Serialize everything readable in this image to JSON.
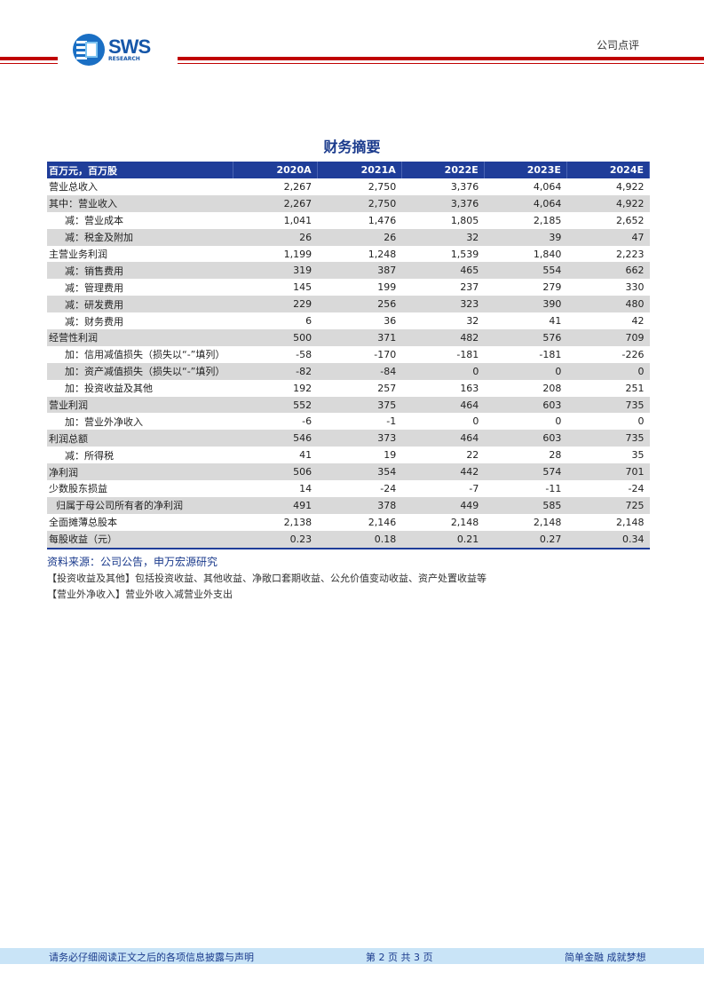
{
  "header": {
    "logo_text": "SWS",
    "logo_sub": "RESEARCH",
    "doc_type": "公司点评",
    "brand_color": "#c00000"
  },
  "title": "财务摘要",
  "table": {
    "columns": [
      "百万元，百万股",
      "2020A",
      "2021A",
      "2022E",
      "2023E",
      "2024E"
    ],
    "rows": [
      {
        "label": "营业总收入",
        "indent": 0,
        "values": [
          "2,267",
          "2,750",
          "3,376",
          "4,064",
          "4,922"
        ]
      },
      {
        "label": "其中：营业收入",
        "indent": 0,
        "values": [
          "2,267",
          "2,750",
          "3,376",
          "4,064",
          "4,922"
        ]
      },
      {
        "label": "减：营业成本",
        "indent": 1,
        "values": [
          "1,041",
          "1,476",
          "1,805",
          "2,185",
          "2,652"
        ]
      },
      {
        "label": "减：税金及附加",
        "indent": 1,
        "values": [
          "26",
          "26",
          "32",
          "39",
          "47"
        ]
      },
      {
        "label": "主营业务利润",
        "indent": 0,
        "values": [
          "1,199",
          "1,248",
          "1,539",
          "1,840",
          "2,223"
        ]
      },
      {
        "label": "减：销售费用",
        "indent": 1,
        "values": [
          "319",
          "387",
          "465",
          "554",
          "662"
        ]
      },
      {
        "label": "减：管理费用",
        "indent": 1,
        "values": [
          "145",
          "199",
          "237",
          "279",
          "330"
        ]
      },
      {
        "label": "减：研发费用",
        "indent": 1,
        "values": [
          "229",
          "256",
          "323",
          "390",
          "480"
        ]
      },
      {
        "label": "减：财务费用",
        "indent": 1,
        "values": [
          "6",
          "36",
          "32",
          "41",
          "42"
        ]
      },
      {
        "label": "经营性利润",
        "indent": 0,
        "values": [
          "500",
          "371",
          "482",
          "576",
          "709"
        ]
      },
      {
        "label": "加：信用减值损失（损失以“-”填列）",
        "indent": 1,
        "values": [
          "-58",
          "-170",
          "-181",
          "-181",
          "-226"
        ]
      },
      {
        "label": "加：资产减值损失（损失以“-”填列）",
        "indent": 1,
        "values": [
          "-82",
          "-84",
          "0",
          "0",
          "0"
        ]
      },
      {
        "label": "加：投资收益及其他",
        "indent": 1,
        "values": [
          "192",
          "257",
          "163",
          "208",
          "251"
        ]
      },
      {
        "label": "营业利润",
        "indent": 0,
        "values": [
          "552",
          "375",
          "464",
          "603",
          "735"
        ]
      },
      {
        "label": "加：营业外净收入",
        "indent": 1,
        "values": [
          "-6",
          "-1",
          "0",
          "0",
          "0"
        ]
      },
      {
        "label": "利润总额",
        "indent": 0,
        "values": [
          "546",
          "373",
          "464",
          "603",
          "735"
        ]
      },
      {
        "label": "减：所得税",
        "indent": 1,
        "values": [
          "41",
          "19",
          "22",
          "28",
          "35"
        ]
      },
      {
        "label": "净利润",
        "indent": 0,
        "values": [
          "506",
          "354",
          "442",
          "574",
          "701"
        ]
      },
      {
        "label": "少数股东损益",
        "indent": 0,
        "values": [
          "14",
          "-24",
          "-7",
          "-11",
          "-24"
        ]
      },
      {
        "label": "归属于母公司所有者的净利润",
        "indent": 2,
        "values": [
          "491",
          "378",
          "449",
          "585",
          "725"
        ]
      },
      {
        "label": "全面摊薄总股本",
        "indent": 0,
        "values": [
          "2,138",
          "2,146",
          "2,148",
          "2,148",
          "2,148"
        ]
      },
      {
        "label": "每股收益（元）",
        "indent": 0,
        "values": [
          "0.23",
          "0.18",
          "0.21",
          "0.27",
          "0.34"
        ]
      }
    ]
  },
  "source": "资料来源：公司公告，申万宏源研究",
  "notes": [
    "【投资收益及其他】包括投资收益、其他收益、净敞口套期收益、公允价值变动收益、资产处置收益等",
    "【营业外净收入】营业外收入减营业外支出"
  ],
  "footer": {
    "disclaimer": "请务必仔细阅读正文之后的各项信息披露与声明",
    "page": "第 2 页 共 3 页",
    "slogan": "简单金融  成就梦想"
  }
}
